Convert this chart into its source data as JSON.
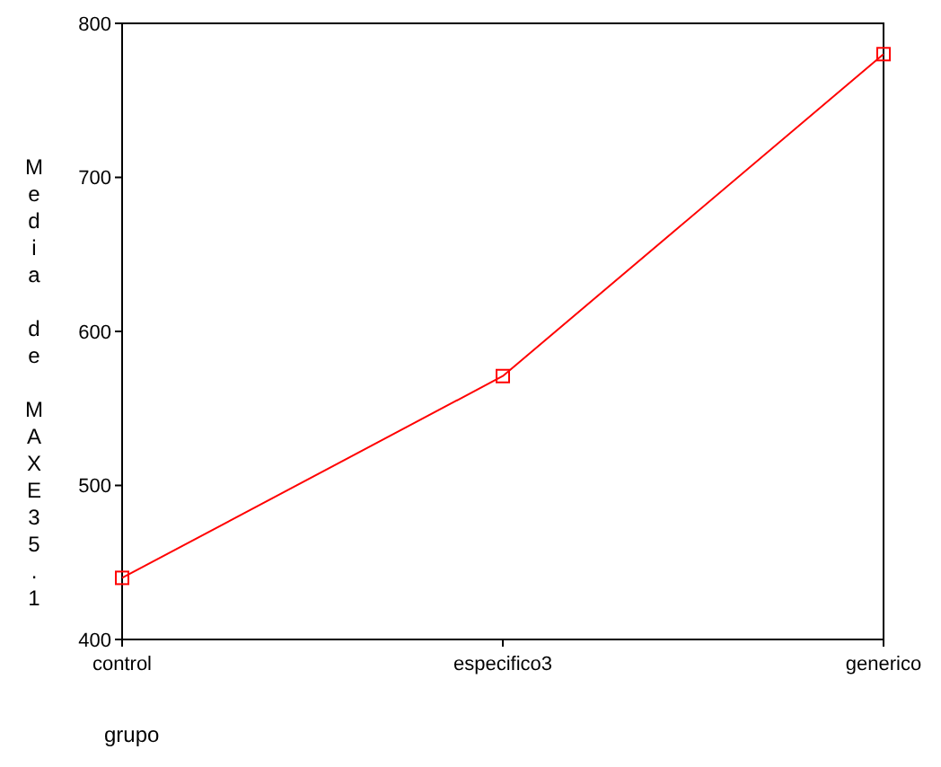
{
  "chart_data": {
    "type": "line",
    "xlabel": "grupo",
    "ylabel": "Media de MAXE35.1",
    "categories": [
      "control",
      "especifico3",
      "generico"
    ],
    "series": [
      {
        "color": "#ff0000",
        "values": [
          440,
          571,
          780
        ]
      }
    ],
    "ylim": [
      400,
      800
    ],
    "yticks": [
      400,
      500,
      600,
      700,
      800
    ],
    "marker": "square",
    "line_style": "solid"
  }
}
